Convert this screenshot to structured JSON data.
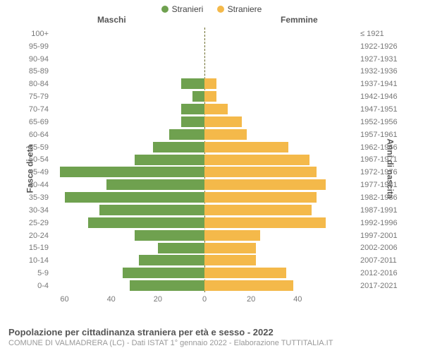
{
  "legend": {
    "male": {
      "label": "Stranieri",
      "color": "#6fa14f"
    },
    "female": {
      "label": "Straniere",
      "color": "#f4b94a"
    }
  },
  "column_headers": {
    "male": "Maschi",
    "female": "Femmine"
  },
  "y_axis_left_title": "Fasce di età",
  "y_axis_right_title": "Anni di nascita",
  "x_axis": {
    "max": 65,
    "ticks_left": [
      60,
      40,
      20,
      0
    ],
    "ticks_right": [
      0,
      20,
      40
    ]
  },
  "chart": {
    "type": "population-pyramid",
    "bar_colors": {
      "male": "#6fa14f",
      "female": "#f4b94a"
    },
    "background_color": "#ffffff",
    "center_line_color": "#6b6b2b",
    "text_color": "#777777",
    "rows": [
      {
        "age": "100+",
        "birth": "≤ 1921",
        "m": 0,
        "f": 0
      },
      {
        "age": "95-99",
        "birth": "1922-1926",
        "m": 0,
        "f": 0
      },
      {
        "age": "90-94",
        "birth": "1927-1931",
        "m": 0,
        "f": 0
      },
      {
        "age": "85-89",
        "birth": "1932-1936",
        "m": 0,
        "f": 0
      },
      {
        "age": "80-84",
        "birth": "1937-1941",
        "m": 10,
        "f": 5
      },
      {
        "age": "75-79",
        "birth": "1942-1946",
        "m": 5,
        "f": 5
      },
      {
        "age": "70-74",
        "birth": "1947-1951",
        "m": 10,
        "f": 10
      },
      {
        "age": "65-69",
        "birth": "1952-1956",
        "m": 10,
        "f": 16
      },
      {
        "age": "60-64",
        "birth": "1957-1961",
        "m": 15,
        "f": 18
      },
      {
        "age": "55-59",
        "birth": "1962-1966",
        "m": 22,
        "f": 36
      },
      {
        "age": "50-54",
        "birth": "1967-1971",
        "m": 30,
        "f": 45
      },
      {
        "age": "45-49",
        "birth": "1972-1976",
        "m": 62,
        "f": 48
      },
      {
        "age": "40-44",
        "birth": "1977-1981",
        "m": 42,
        "f": 52
      },
      {
        "age": "35-39",
        "birth": "1982-1986",
        "m": 60,
        "f": 48
      },
      {
        "age": "30-34",
        "birth": "1987-1991",
        "m": 45,
        "f": 46
      },
      {
        "age": "25-29",
        "birth": "1992-1996",
        "m": 50,
        "f": 52
      },
      {
        "age": "20-24",
        "birth": "1997-2001",
        "m": 30,
        "f": 24
      },
      {
        "age": "15-19",
        "birth": "2002-2006",
        "m": 20,
        "f": 22
      },
      {
        "age": "10-14",
        "birth": "2007-2011",
        "m": 28,
        "f": 22
      },
      {
        "age": "5-9",
        "birth": "2012-2016",
        "m": 35,
        "f": 35
      },
      {
        "age": "0-4",
        "birth": "2017-2021",
        "m": 32,
        "f": 38
      }
    ]
  },
  "footer": {
    "title": "Popolazione per cittadinanza straniera per età e sesso - 2022",
    "subtitle": "COMUNE DI VALMADRERA (LC) - Dati ISTAT 1° gennaio 2022 - Elaborazione TUTTITALIA.IT"
  }
}
